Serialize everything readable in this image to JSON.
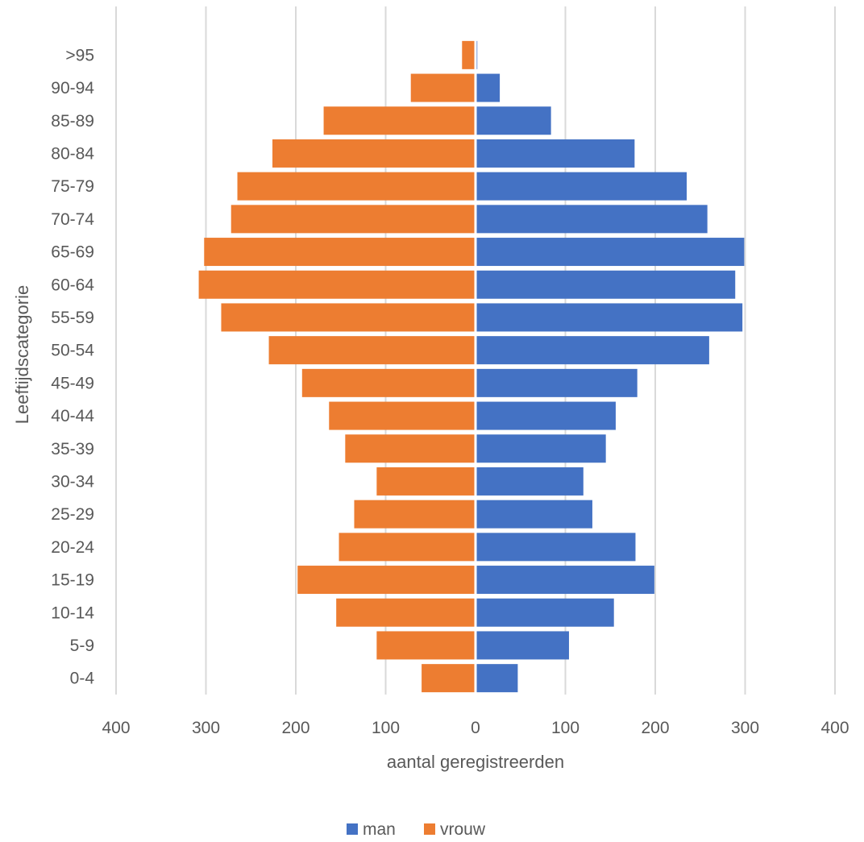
{
  "chart_data": {
    "type": "bar",
    "orientation": "horizontal",
    "subtype": "population-pyramid",
    "categories": [
      "0-4",
      "5-9",
      "10-14",
      "15-19",
      "20-24",
      "25-29",
      "30-34",
      "35-39",
      "40-44",
      "45-49",
      "50-54",
      "55-59",
      "60-64",
      "65-69",
      "70-74",
      "75-79",
      "80-84",
      "85-89",
      "90-94",
      ">95"
    ],
    "series": [
      {
        "name": "man",
        "color": "#4472C4",
        "side": "right",
        "values": [
          47,
          104,
          154,
          199,
          178,
          130,
          120,
          145,
          156,
          180,
          260,
          297,
          289,
          299,
          258,
          235,
          177,
          84,
          27,
          2
        ]
      },
      {
        "name": "vrouw",
        "color": "#ED7D31",
        "side": "left",
        "values": [
          60,
          110,
          155,
          198,
          152,
          135,
          110,
          145,
          163,
          193,
          230,
          283,
          308,
          302,
          272,
          265,
          226,
          169,
          72,
          15
        ]
      }
    ],
    "xlabel": "aantal geregistreerden",
    "ylabel": "Leeftijdscategorie",
    "xlim": [
      -400,
      400
    ],
    "xticks": [
      -400,
      -300,
      -200,
      -100,
      0,
      100,
      200,
      300,
      400
    ],
    "xtick_labels": [
      "400",
      "300",
      "200",
      "100",
      "0",
      "100",
      "200",
      "300",
      "400"
    ],
    "grid": "vertical",
    "legend": "bottom"
  }
}
